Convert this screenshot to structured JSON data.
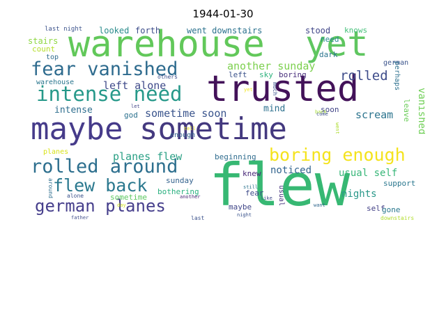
{
  "title": "1944-01-30",
  "words": [
    {
      "text": "warehouse",
      "color": "#62c85a"
    },
    {
      "text": "yet",
      "color": "#5fc660"
    },
    {
      "text": "trusted",
      "color": "#431259"
    },
    {
      "text": "maybe",
      "color": "#463b8a"
    },
    {
      "text": "sometime",
      "color": "#44397f"
    },
    {
      "text": "flew",
      "color": "#37b873"
    },
    {
      "text": "fear vanished",
      "color": "#2e6b8e"
    },
    {
      "text": "intense need",
      "color": "#27998a"
    },
    {
      "text": "rolled around",
      "color": "#2d6f8e"
    },
    {
      "text": "boring enough",
      "color": "#f4e31d"
    },
    {
      "text": "german planes",
      "color": "#463f8c"
    },
    {
      "text": "flew back",
      "color": "#2a788e"
    },
    {
      "text": "planes flew",
      "color": "#2aa085"
    },
    {
      "text": "another sunday",
      "color": "#7cd04e"
    },
    {
      "text": "left alone",
      "color": "#3f4a8a"
    },
    {
      "text": "sometime soon",
      "color": "#3a548c"
    },
    {
      "text": "usual self",
      "color": "#37b678"
    },
    {
      "text": "rolled",
      "color": "#3e4c8a"
    },
    {
      "text": "scream",
      "color": "#2c748e"
    },
    {
      "text": "vanished",
      "color": "#70cf57"
    },
    {
      "text": "nights",
      "color": "#2a9889"
    },
    {
      "text": "noticed",
      "color": "#32648e"
    },
    {
      "text": "intense",
      "color": "#2e6e8e"
    },
    {
      "text": "mind",
      "color": "#2d718e"
    },
    {
      "text": "soon",
      "color": "#414487"
    },
    {
      "text": "looked",
      "color": "#2b8c8c"
    },
    {
      "text": "forth",
      "color": "#3d4d8a"
    },
    {
      "text": "went downstairs",
      "color": "#2c728e"
    },
    {
      "text": "stood",
      "color": "#404688"
    },
    {
      "text": "knows",
      "color": "#45c07a"
    },
    {
      "text": "last night",
      "color": "#3b528b"
    },
    {
      "text": "stairs",
      "color": "#8fd744"
    },
    {
      "text": "count",
      "color": "#b5de2b"
    },
    {
      "text": "top",
      "color": "#2f6c8e"
    },
    {
      "text": "warehouse",
      "color": "#2a768e"
    },
    {
      "text": "need",
      "color": "#23898e"
    },
    {
      "text": "dark",
      "color": "#2b758e"
    },
    {
      "text": "german",
      "color": "#3a538b"
    },
    {
      "text": "perhaps",
      "color": "#2d708e"
    },
    {
      "text": "leave",
      "color": "#6ccd5a"
    },
    {
      "text": "boring",
      "color": "#472d7b"
    },
    {
      "text": "sky",
      "color": "#2db27d"
    },
    {
      "text": "left",
      "color": "#3b528b"
    },
    {
      "text": "others",
      "color": "#3d4e8a"
    },
    {
      "text": "much",
      "color": "#3b528b"
    },
    {
      "text": "yet",
      "color": "#f1e51d"
    },
    {
      "text": "let",
      "color": "#414487"
    },
    {
      "text": "god",
      "color": "#2c718e"
    },
    {
      "text": "back",
      "color": "#a5db36"
    },
    {
      "text": "come",
      "color": "#3c4f8a"
    },
    {
      "text": "went",
      "color": "#addc30"
    },
    {
      "text": "tell",
      "color": "#e7e419"
    },
    {
      "text": "enough",
      "color": "#33638d"
    },
    {
      "text": "planes",
      "color": "#d8e219"
    },
    {
      "text": "beginning",
      "color": "#2f6c8e"
    },
    {
      "text": "knew",
      "color": "#482878"
    },
    {
      "text": "sunday",
      "color": "#33628d"
    },
    {
      "text": "still",
      "color": "#2c728e"
    },
    {
      "text": "usual",
      "color": "#46327e"
    },
    {
      "text": "fear",
      "color": "#3e4a89"
    },
    {
      "text": "support",
      "color": "#2a778e"
    },
    {
      "text": "bothering",
      "color": "#2ab07f"
    },
    {
      "text": "sometime",
      "color": "#5ec962"
    },
    {
      "text": "around",
      "color": "#2e6e8e"
    },
    {
      "text": "alone",
      "color": "#3b528b"
    },
    {
      "text": "another",
      "color": "#482475"
    },
    {
      "text": "like",
      "color": "#3e4989"
    },
    {
      "text": "maybe",
      "color": "#404688"
    },
    {
      "text": "want",
      "color": "#31688e"
    },
    {
      "text": "self",
      "color": "#424086"
    },
    {
      "text": "gone",
      "color": "#2a788e"
    },
    {
      "text": "day",
      "color": "#d0e11c"
    },
    {
      "text": "father",
      "color": "#3e4c8a"
    },
    {
      "text": "last",
      "color": "#3b528b"
    },
    {
      "text": "night",
      "color": "#3a538b"
    },
    {
      "text": "downstairs",
      "color": "#b2dd2d"
    }
  ]
}
